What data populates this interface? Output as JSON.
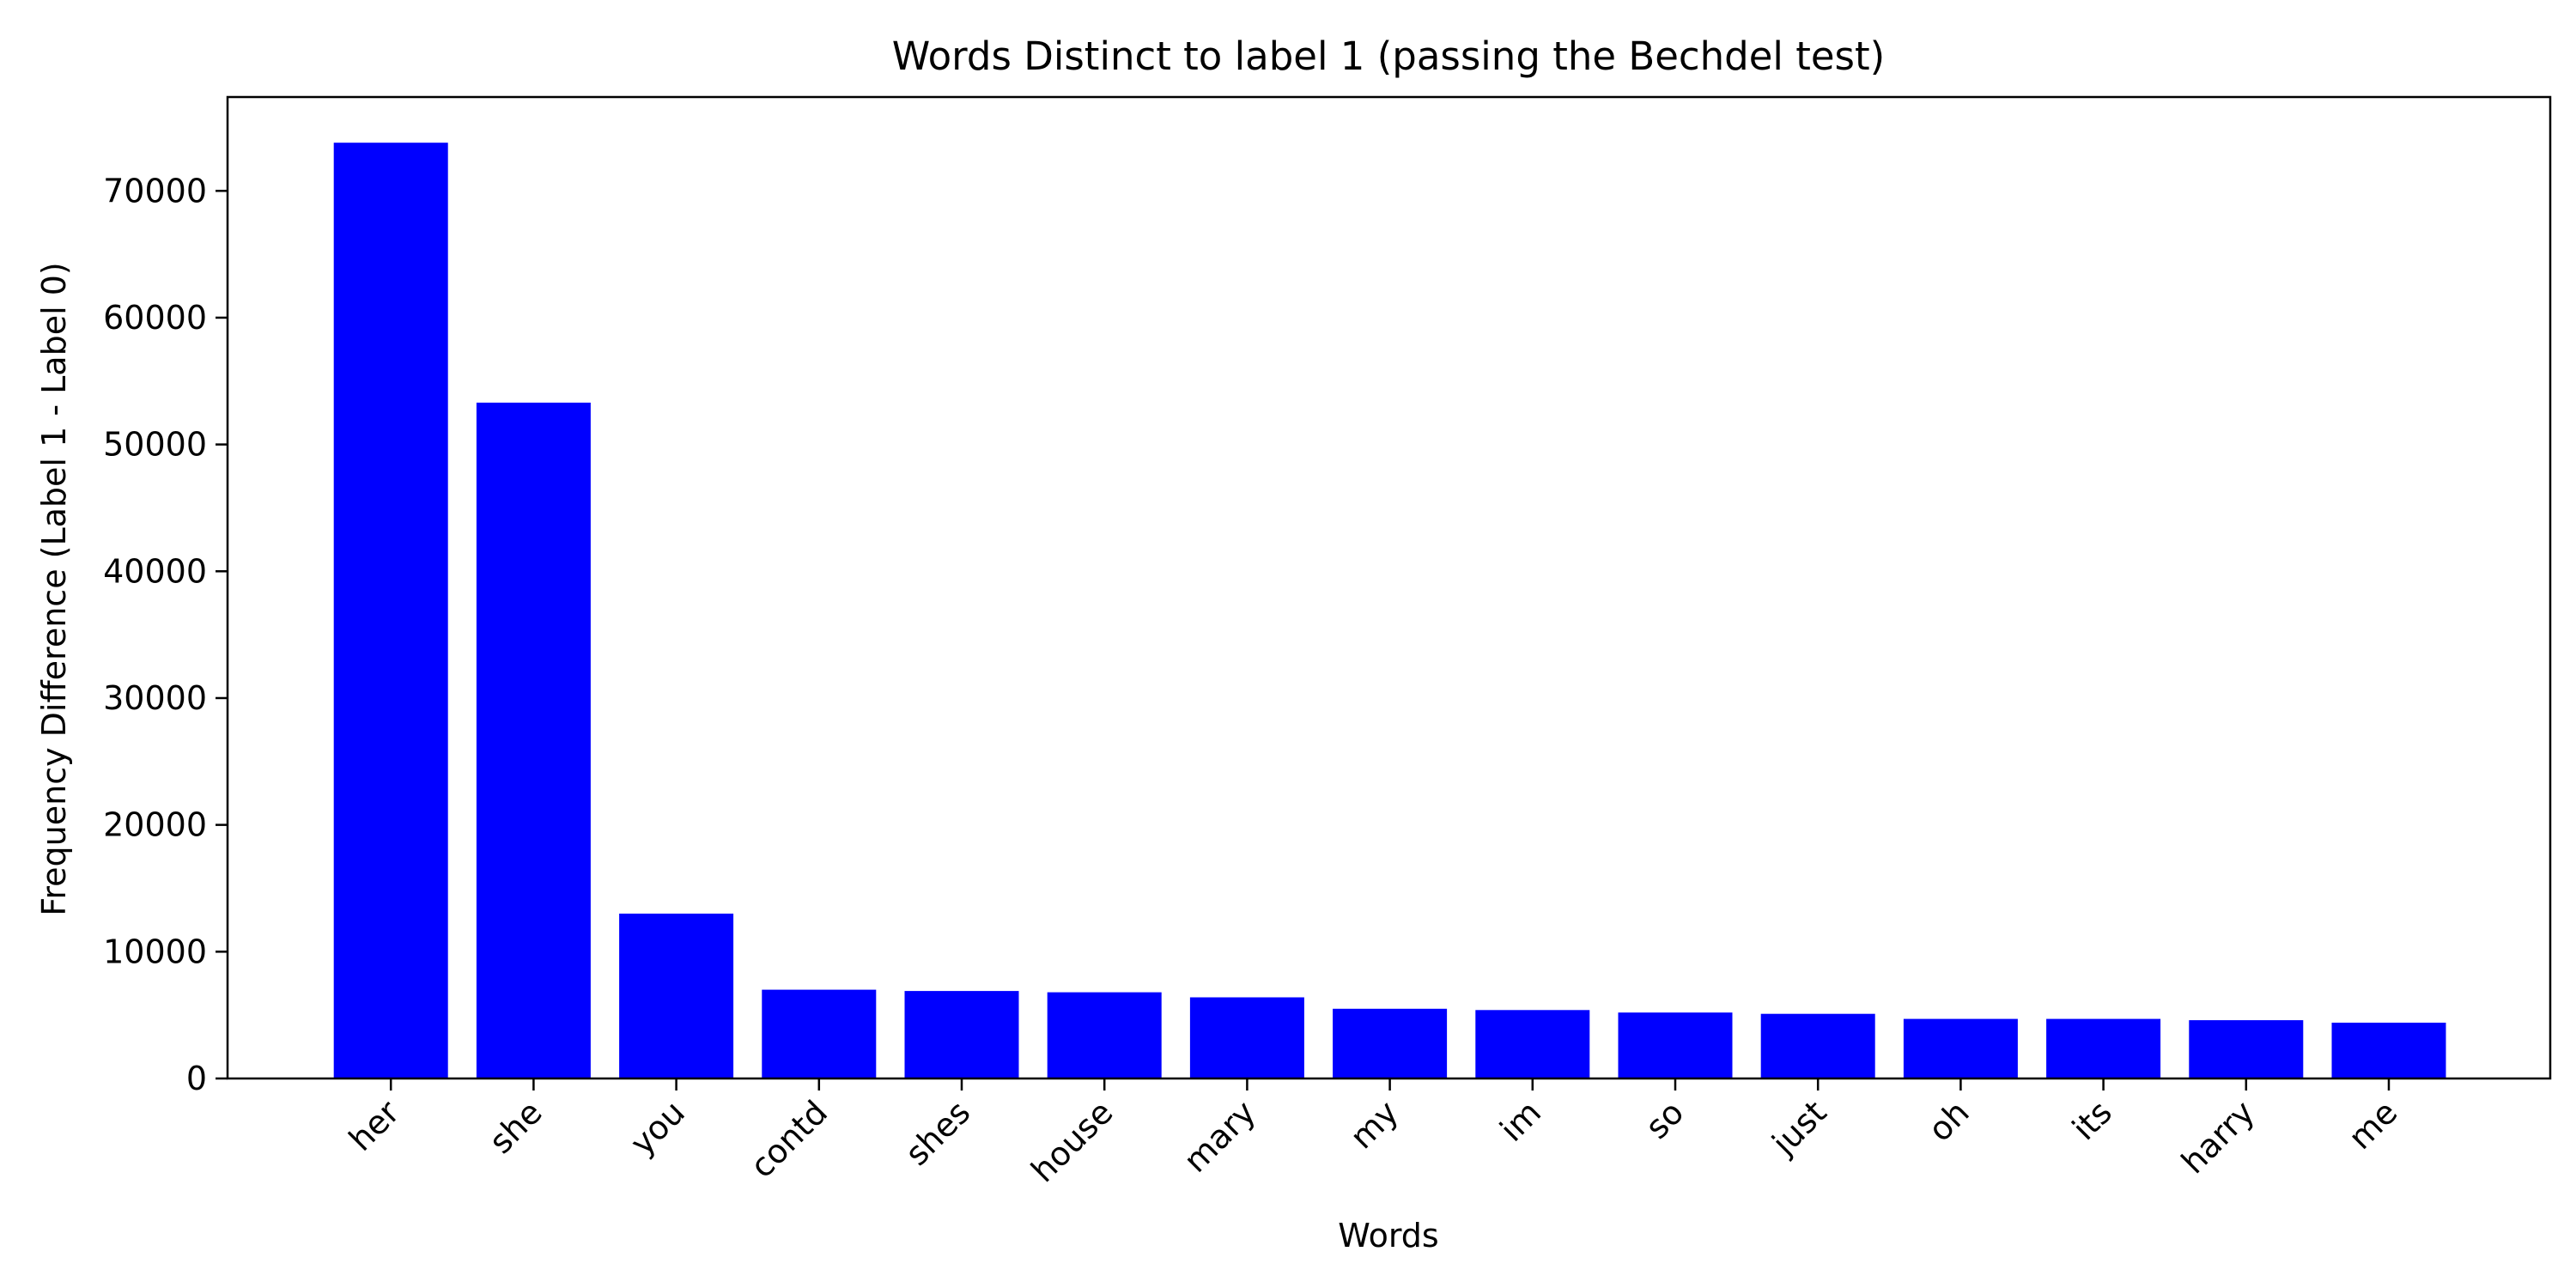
{
  "chart_data": {
    "type": "bar",
    "title": "Words Distinct to label 1 (passing the Bechdel test)",
    "xlabel": "Words",
    "ylabel": "Frequency Difference (Label 1 - Label 0)",
    "categories": [
      "her",
      "she",
      "you",
      "contd",
      "shes",
      "house",
      "mary",
      "my",
      "im",
      "so",
      "just",
      "oh",
      "its",
      "harry",
      "me"
    ],
    "values": [
      73800,
      53300,
      13000,
      7000,
      6900,
      6800,
      6400,
      5500,
      5400,
      5200,
      5100,
      4700,
      4700,
      4600,
      4400
    ],
    "ylim": [
      0,
      77400
    ],
    "yticks": [
      0,
      10000,
      20000,
      30000,
      40000,
      50000,
      60000,
      70000
    ],
    "bar_color": "#0000ff",
    "grid": false,
    "legend": "none"
  }
}
